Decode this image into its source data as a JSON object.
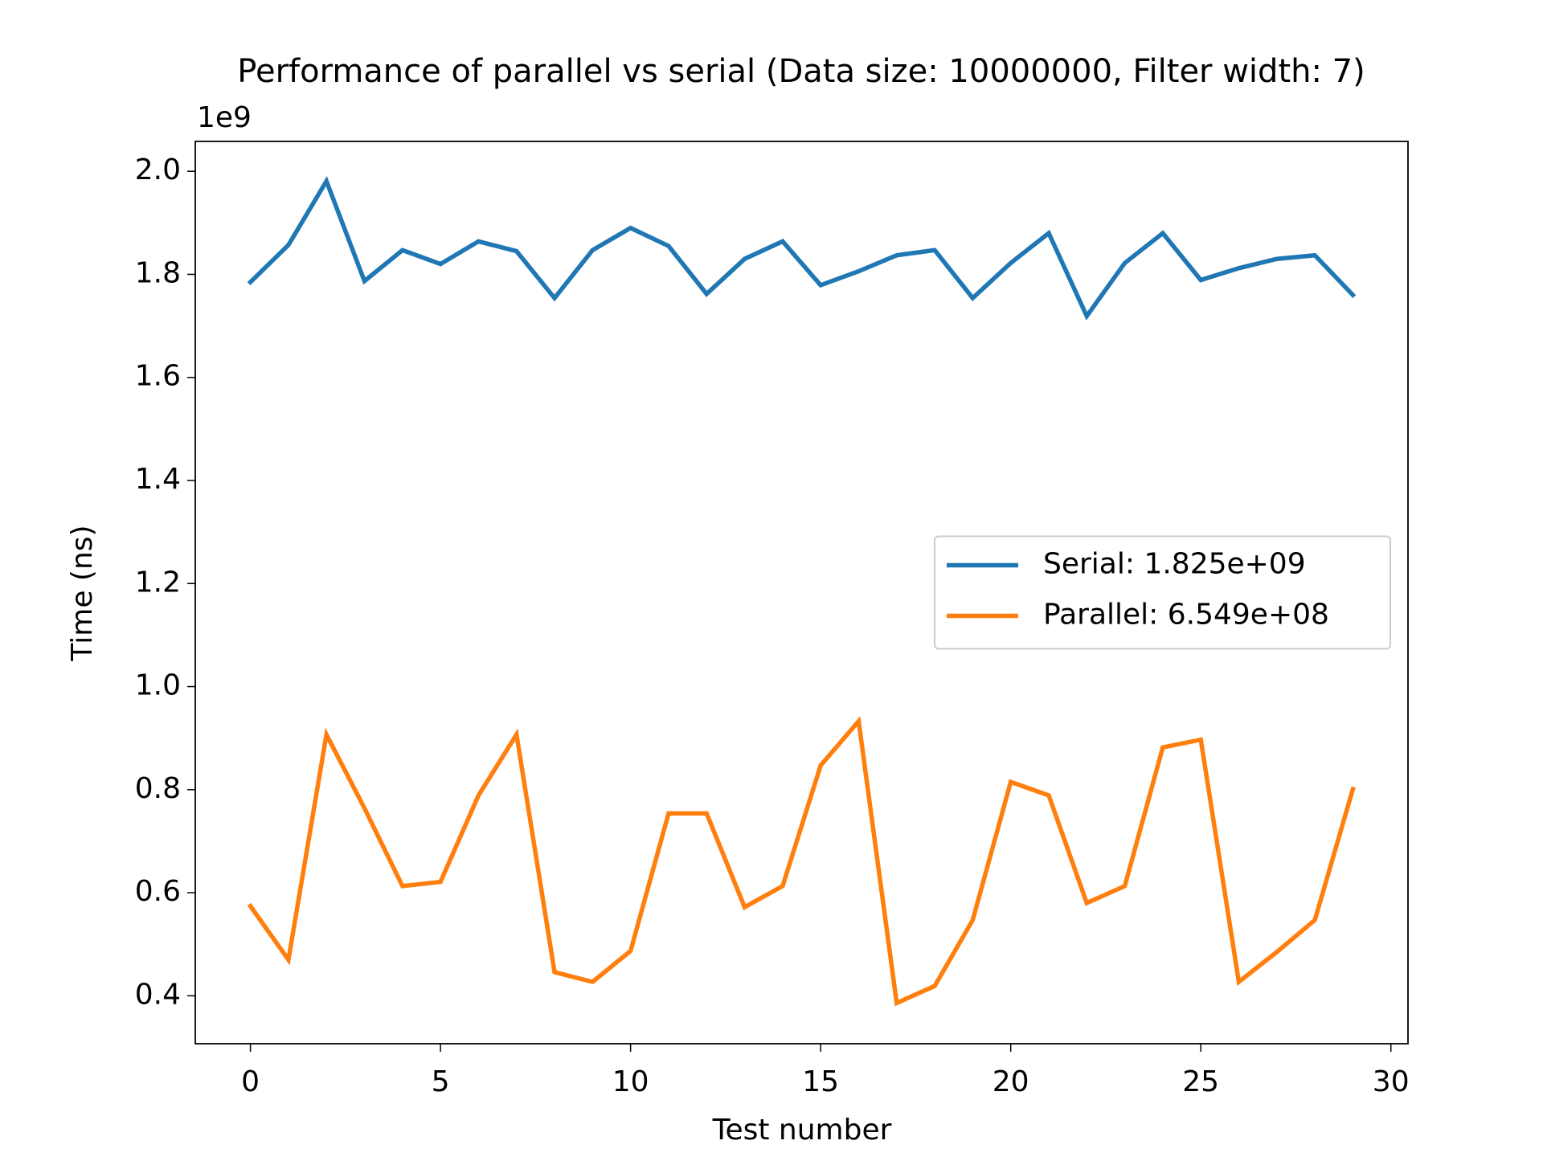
{
  "chart_data": {
    "type": "line",
    "title": "Performance of parallel vs serial (Data size: 10000000, Filter width: 7)",
    "x_label": "Test number",
    "y_label": "Time (ns)",
    "y_offset_label": "1e9",
    "x": [
      0,
      1,
      2,
      3,
      4,
      5,
      6,
      7,
      8,
      9,
      10,
      11,
      12,
      13,
      14,
      15,
      16,
      17,
      18,
      19,
      20,
      21,
      22,
      23,
      24,
      25,
      26,
      27,
      28,
      29
    ],
    "series": [
      {
        "name": "Serial: 1.825e+09",
        "color": "#1f77b4",
        "values": [
          1.785,
          1.857,
          1.981,
          1.787,
          1.847,
          1.82,
          1.864,
          1.845,
          1.754,
          1.847,
          1.89,
          1.855,
          1.762,
          1.83,
          1.864,
          1.779,
          1.806,
          1.837,
          1.847,
          1.754,
          1.822,
          1.88,
          1.719,
          1.822,
          1.88,
          1.789,
          1.812,
          1.83,
          1.837,
          1.76
        ]
      },
      {
        "name": "Parallel: 6.549e+08",
        "color": "#ff7f0e",
        "values": [
          0.574,
          0.47,
          0.907,
          0.764,
          0.613,
          0.621,
          0.789,
          0.907,
          0.446,
          0.427,
          0.487,
          0.754,
          0.754,
          0.572,
          0.613,
          0.847,
          0.933,
          0.386,
          0.419,
          0.547,
          0.815,
          0.789,
          0.58,
          0.613,
          0.882,
          0.897,
          0.427,
          0.485,
          0.547,
          0.801
        ]
      }
    ],
    "xlim": [
      -1.45,
      30.45
    ],
    "xticks": [
      0,
      5,
      10,
      15,
      20,
      25,
      30
    ],
    "ylim": [
      0.307,
      2.058
    ],
    "yticks": [
      0.4,
      0.6,
      0.8,
      {
        "value": 1,
        "label": "1.0"
      },
      1.2,
      1.4,
      1.6,
      1.8,
      {
        "value": 2,
        "label": "2.0"
      }
    ],
    "grid": false,
    "legend_loc": "center right"
  }
}
